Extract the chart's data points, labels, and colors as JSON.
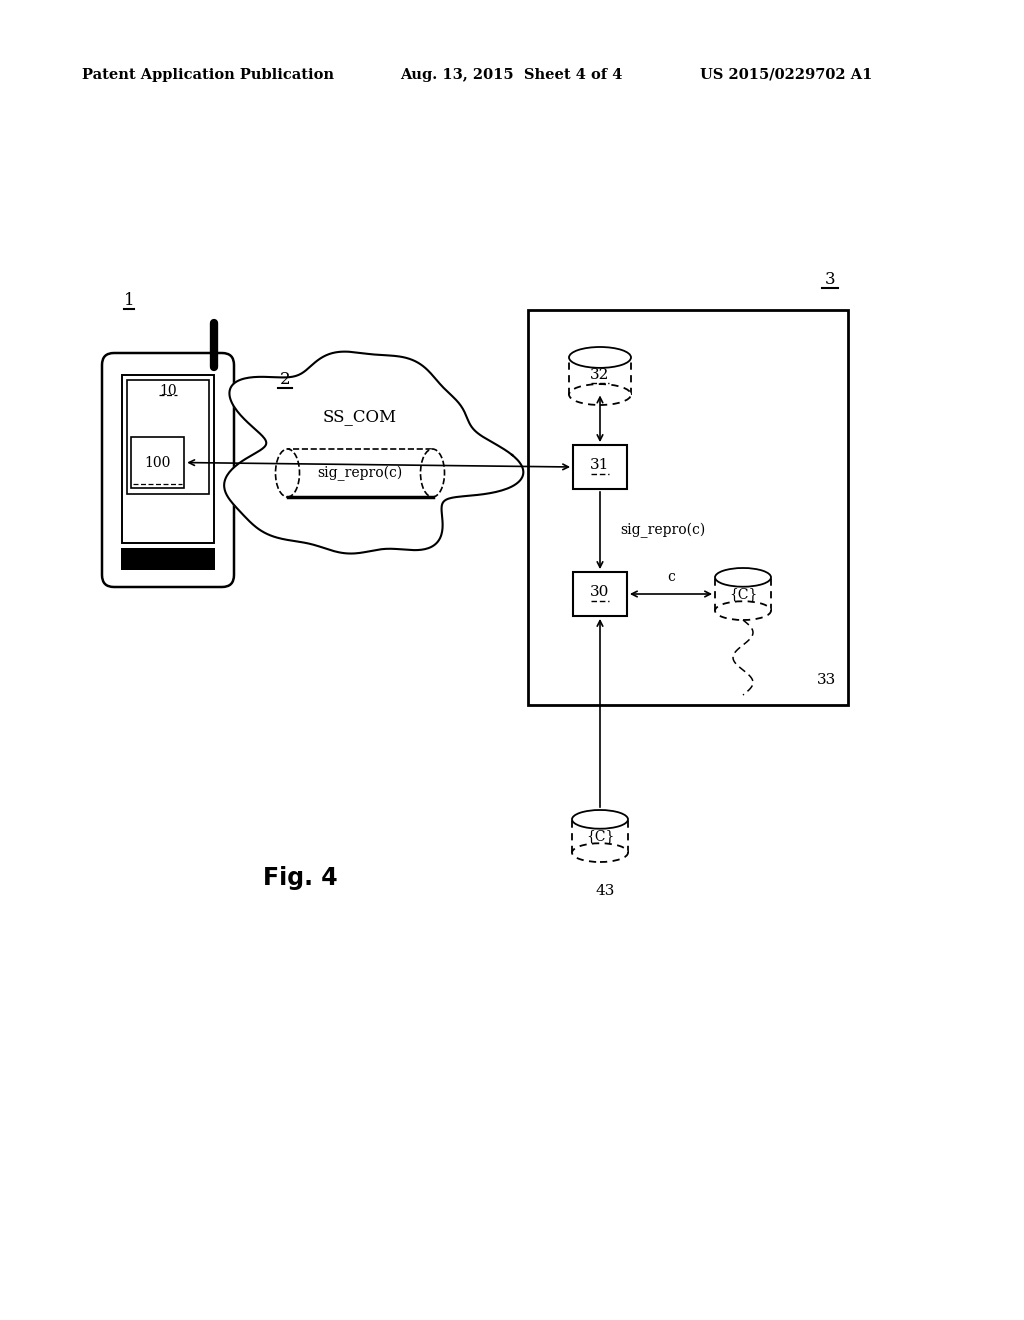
{
  "bg_color": "#ffffff",
  "header_left": "Patent Application Publication",
  "header_mid": "Aug. 13, 2015  Sheet 4 of 4",
  "header_right": "US 2015/0229702 A1",
  "fig_label": "Fig. 4",
  "phone_label": "1",
  "cloud_label": "2",
  "cloud_text1": "SS_COM",
  "cloud_text2": "sig_repro(c)",
  "server_box_label": "3",
  "db32_label": "32",
  "box31_label": "31",
  "sig_repro_label": "sig_repro(c)",
  "box30_label": "30",
  "c_label": "c",
  "cylinder33_label": "{C}",
  "label33": "33",
  "cylinder43_label": "{C}",
  "label43": "43",
  "box10_label": "10",
  "box100_label": "100"
}
